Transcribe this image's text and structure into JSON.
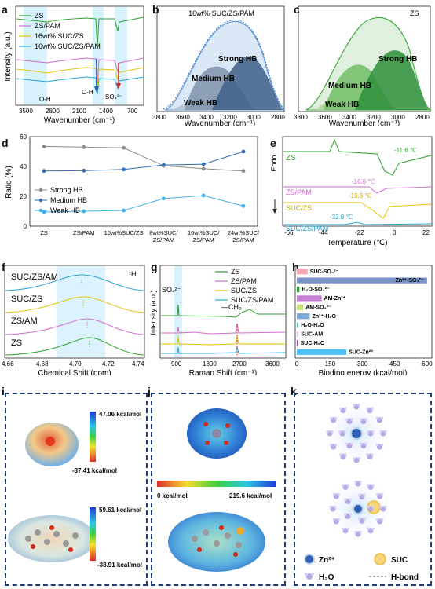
{
  "panels": {
    "a": {
      "letter": "a",
      "ylabel": "Intensity (a.u.)",
      "xlabel": "Wavenumber (cm⁻¹)",
      "ticks": [
        "3500",
        "2800",
        "2100",
        "1400",
        "700"
      ],
      "legend": [
        "ZS",
        "ZS/PAM",
        "16wt% SUC/ZS",
        "16wt% SUC/ZS/PAM"
      ],
      "annotations": [
        "O-H",
        "O-H",
        "SO₄²⁻"
      ],
      "colors": [
        "#2ca02c",
        "#d36ad0",
        "#e6c200",
        "#29a3d9"
      ]
    },
    "b": {
      "letter": "b",
      "title": "16wt% SUC/ZS/PAM",
      "xlabel": "Wavenumber (cm⁻¹)",
      "ticks": [
        "3800",
        "3600",
        "3400",
        "3200",
        "3000",
        "2800"
      ],
      "peaks": [
        "Strong HB",
        "Medium HB",
        "Weak HB"
      ]
    },
    "c": {
      "letter": "c",
      "title": "ZS",
      "xlabel": "Wavenumber (cm⁻¹)",
      "ticks": [
        "3800",
        "3600",
        "3400",
        "3200",
        "3000",
        "2800"
      ],
      "peaks": [
        "Strong HB",
        "Medium HB",
        "Weak HB"
      ]
    },
    "d": {
      "letter": "d",
      "ylabel": "Ratio (%)",
      "legend": [
        "Strong HB",
        "Medium HB",
        "Weak HB"
      ],
      "categories": [
        "ZS",
        "ZS/PAM",
        "16wt%SUC/ZS",
        "8wt%SUC/\nZS/PAM",
        "16wt%SUC/\nZS/PAM",
        "24wt%SUC/\nZS/PAM"
      ],
      "yticks": [
        "0",
        "20",
        "40",
        "60"
      ]
    },
    "e": {
      "letter": "e",
      "ylabel": "Endo",
      "xlabel": "Temperature (℃)",
      "ticks": [
        "-66",
        "-44",
        "-22",
        "0",
        "22"
      ],
      "curves": [
        "ZS",
        "ZS/PAM",
        "SUC/ZS",
        "SUC/ZS/PAM"
      ],
      "temps": [
        "-11.6 ℃",
        "-16.6 ℃",
        "-19.3 ℃",
        "-32.8 ℃"
      ]
    },
    "f": {
      "letter": "f",
      "xlabel": "Chemical Shift (ppm)",
      "nucleus": "¹H",
      "ticks": [
        "4.66",
        "4.68",
        "4.70",
        "4.72",
        "4.74"
      ],
      "curves": [
        "SUC/ZS/AM",
        "SUC/ZS",
        "ZS/AM",
        "ZS"
      ]
    },
    "g": {
      "letter": "g",
      "ylabel": "Intensity (a.u.)",
      "xlabel": "Raman Shift (cm⁻¹)",
      "ticks": [
        "900",
        "1800",
        "2700",
        "3600"
      ],
      "legend": [
        "ZS",
        "ZS/PAM",
        "SUC/ZS",
        "SUC/ZS/PAM"
      ],
      "annotations": [
        "SO₄²⁻",
        "—CH₂"
      ]
    },
    "h": {
      "letter": "h",
      "xlabel": "Binding energy (kcal/mol)",
      "ticks": [
        "0",
        "-150",
        "-300",
        "-450",
        "-600"
      ]
    },
    "i": {
      "letter": "i",
      "esp": [
        "47.06 kcal/mol",
        "-37.41 kcal/mol",
        "59.61 kcal/mol",
        "-38.91 kcal/mol"
      ]
    },
    "j": {
      "letter": "j",
      "scale_min": "0 kcal/mol",
      "scale_max": "219.6 kcal/mol"
    },
    "k": {
      "letter": "k",
      "legend": [
        "Zn²⁺",
        "SUC",
        "H₂O",
        "H-bond"
      ]
    }
  },
  "chart_data": [
    {
      "type": "bar",
      "panel": "h",
      "orientation": "horizontal",
      "categories": [
        "SUC-SO₄²⁻",
        "Zn²⁺-SO₄²⁻",
        "H₂O-SO₄²⁻",
        "AM-Zn²⁺",
        "AM-SO₄²⁻",
        "Zn²⁺-H₂O",
        "H₂O-H₂O",
        "SUC-AM",
        "SUC-H₂O",
        "SUC-Zn²⁺"
      ],
      "values": [
        -50,
        -605,
        -12,
        -115,
        -30,
        -60,
        -8,
        -8,
        -6,
        -230
      ],
      "colors": [
        "#f4a6b0",
        "#7c95c9",
        "#2ca02c",
        "#c77fd6",
        "#c9e07a",
        "#7aa7d6",
        "#66c2c2",
        "#e0c3f0",
        "#9b59b6",
        "#4fc3f7"
      ],
      "xlim": [
        0,
        -620
      ]
    },
    {
      "type": "line",
      "panel": "d",
      "categories": [
        "ZS",
        "ZS/PAM",
        "16wt%SUC/ZS",
        "8wt%SUC/ZS/PAM",
        "16wt%SUC/ZS/PAM",
        "24wt%SUC/ZS/PAM"
      ],
      "series": [
        {
          "name": "Strong HB",
          "values": [
            53.5,
            53,
            52.5,
            40.5,
            38.5,
            37
          ],
          "color": "#8c8c8c"
        },
        {
          "name": "Medium HB",
          "values": [
            37,
            37.2,
            38,
            41,
            41.5,
            50
          ],
          "color": "#2f6fb5"
        },
        {
          "name": "Weak HB",
          "values": [
            9.5,
            10,
            10.5,
            18.5,
            20.5,
            13.5
          ],
          "color": "#3fb0e8"
        }
      ],
      "ylim": [
        0,
        60
      ]
    }
  ]
}
